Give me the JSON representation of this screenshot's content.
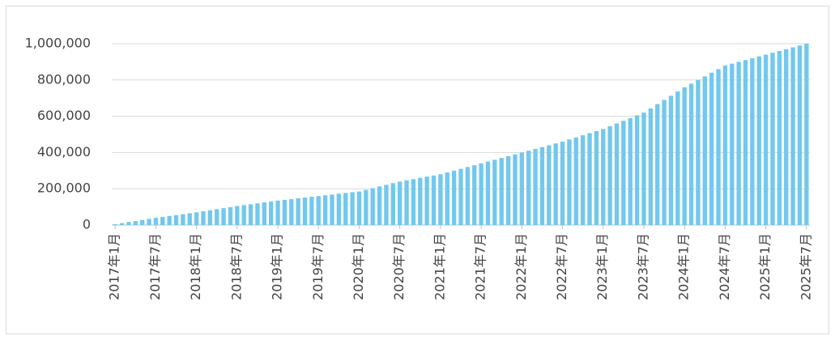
{
  "chart_data": {
    "type": "bar",
    "categories": [
      "2017年1月",
      null,
      null,
      null,
      null,
      null,
      "2017年7月",
      null,
      null,
      null,
      null,
      null,
      "2018年1月",
      null,
      null,
      null,
      null,
      null,
      "2018年7月",
      null,
      null,
      null,
      null,
      null,
      "2019年1月",
      null,
      null,
      null,
      null,
      null,
      "2019年7月",
      null,
      null,
      null,
      null,
      null,
      "2020年1月",
      null,
      null,
      null,
      null,
      null,
      "2020年7月",
      null,
      null,
      null,
      null,
      null,
      "2021年1月",
      null,
      null,
      null,
      null,
      null,
      "2021年7月",
      null,
      null,
      null,
      null,
      null,
      "2022年1月",
      null,
      null,
      null,
      null,
      null,
      "2022年7月",
      null,
      null,
      null,
      null,
      null,
      "2023年1月",
      null,
      null,
      null,
      null,
      null,
      "2023年7月",
      null,
      null,
      null,
      null,
      null,
      "2024年1月",
      null,
      null,
      null,
      null,
      null,
      "2024年7月",
      null,
      null,
      null,
      null,
      null,
      "2025年1月",
      null,
      null,
      null,
      null,
      null,
      "2025年7月"
    ],
    "values": [
      5000,
      11000,
      17000,
      22000,
      28000,
      34000,
      40000,
      45000,
      50000,
      55000,
      60000,
      65000,
      70000,
      76000,
      82000,
      88000,
      93000,
      99000,
      105000,
      110000,
      115000,
      120000,
      125000,
      130000,
      135000,
      139000,
      143000,
      148000,
      152000,
      156000,
      160000,
      164000,
      168000,
      173000,
      177000,
      181000,
      185000,
      194000,
      203000,
      213000,
      222000,
      231000,
      240000,
      247000,
      253000,
      260000,
      267000,
      273000,
      280000,
      290000,
      300000,
      310000,
      320000,
      330000,
      340000,
      350000,
      360000,
      370000,
      380000,
      390000,
      400000,
      410000,
      420000,
      430000,
      440000,
      450000,
      460000,
      472000,
      483000,
      495000,
      507000,
      518000,
      530000,
      545000,
      560000,
      575000,
      590000,
      605000,
      620000,
      643000,
      667000,
      690000,
      713000,
      737000,
      760000,
      780000,
      800000,
      820000,
      840000,
      860000,
      880000,
      890000,
      900000,
      910000,
      920000,
      930000,
      940000,
      950000,
      960000,
      970000,
      980000,
      990000,
      1000000
    ],
    "color": "#72c8ee",
    "ylim": [
      0,
      1000000
    ],
    "yticks": [
      0,
      {
        "value": 200000,
        "label": "200,000"
      },
      {
        "value": 400000,
        "label": "400,000"
      },
      {
        "value": 600000,
        "label": "600,000"
      },
      {
        "value": 800000,
        "label": "800,000"
      },
      {
        "value": 1000000,
        "label": "1,000,000"
      }
    ],
    "grid": true
  }
}
